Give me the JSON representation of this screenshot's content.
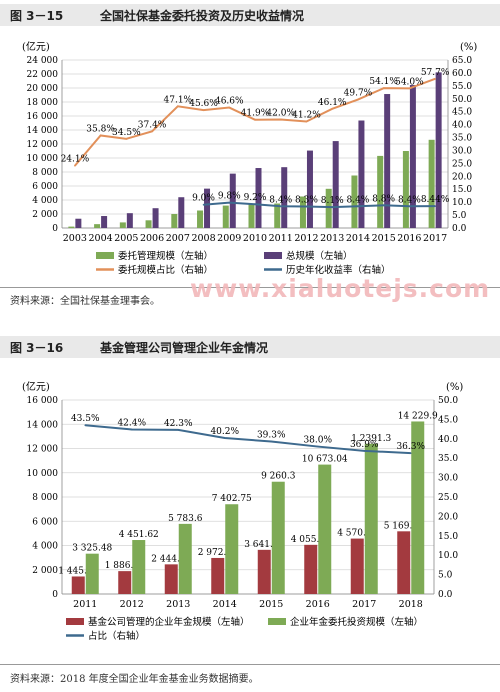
{
  "figures": [
    {
      "number": "图 3－15",
      "title": "全国社保基金委托投资及历史收益情况",
      "source": "资料来源：全国社保基金理事会。"
    },
    {
      "number": "图 3－16",
      "title": "基金管理公司管理企业年金情况",
      "source": "资料来源：2018 年度全国企业年金基金业务数据摘要。"
    }
  ],
  "watermark": "www.xialuotejs.com",
  "chart_data": [
    {
      "type": "bar",
      "title": "全国社保基金委托投资及历史收益情况",
      "left_axis_unit": "(亿元)",
      "right_axis_unit": "(%)",
      "ylim": [
        0,
        24000
      ],
      "ylim_right": [
        0,
        65
      ],
      "y_ticks": [
        "0",
        "2 000",
        "4 000",
        "6 000",
        "8 000",
        "10 000",
        "12 000",
        "14 000",
        "16 000",
        "18 000",
        "20 000",
        "22 000",
        "24 000"
      ],
      "y2_ticks": [
        "0.0",
        "5.0",
        "10.0",
        "15.0",
        "20.0",
        "25.0",
        "30.0",
        "35.0",
        "40.0",
        "45.0",
        "50.0",
        "55.0",
        "60.0",
        "65.0"
      ],
      "categories": [
        "2003",
        "2004",
        "2005",
        "2006",
        "2007",
        "2008",
        "2009",
        "2010",
        "2011",
        "2012",
        "2013",
        "2014",
        "2015",
        "2016",
        "2017"
      ],
      "series": [
        {
          "name": "委托管理规模（左轴）",
          "kind": "bar",
          "axis": "left",
          "color": "#7eaa55",
          "values": [
            200,
            550,
            800,
            1100,
            2000,
            2500,
            3200,
            3400,
            3500,
            4500,
            5600,
            7500,
            10300,
            11000,
            12600
          ]
        },
        {
          "name": "总规模（左轴）",
          "kind": "bar",
          "axis": "left",
          "color": "#5a3f78",
          "values": [
            1325,
            1711,
            2118,
            2828,
            4397,
            5624,
            7766,
            8567,
            8688,
            11060,
            12416,
            15356,
            19138,
            20423,
            22231
          ]
        },
        {
          "name": "委托规模占比（右轴）",
          "kind": "line",
          "axis": "right",
          "color": "#e2905a",
          "values": [
            24.1,
            35.8,
            34.5,
            37.4,
            47.1,
            45.6,
            46.6,
            41.9,
            42.0,
            41.2,
            46.1,
            49.7,
            54.1,
            54.0,
            57.7
          ],
          "labels": [
            "24.1%",
            "35.8%",
            "34.5%",
            "37.4%",
            "47.1%",
            "45.6%",
            "46.6%",
            "41.9%",
            "42.0%",
            "41.2%",
            "46.1%",
            "49.7%",
            "54.1%",
            "54.0%",
            "57.7%"
          ]
        },
        {
          "name": "历史年化收益率（右轴）",
          "kind": "line",
          "axis": "right",
          "color": "#3e6a8e",
          "values": [
            null,
            null,
            null,
            null,
            null,
            9.0,
            9.8,
            9.2,
            8.4,
            8.3,
            8.1,
            8.4,
            8.8,
            8.4,
            8.44
          ],
          "labels": [
            "",
            "",
            "",
            "",
            "",
            "9.0%",
            "9.8%",
            "9.2%",
            "8.4%",
            "8.3%",
            "8.1%",
            "8.4%",
            "8.8%",
            "8.4%",
            "8.44%"
          ]
        }
      ],
      "legend_placement": "bottom",
      "grid": true
    },
    {
      "type": "bar",
      "title": "基金管理公司管理企业年金情况",
      "left_axis_unit": "(亿元)",
      "right_axis_unit": "(%)",
      "ylim": [
        0,
        16000
      ],
      "ylim_right": [
        0,
        50
      ],
      "y_ticks": [
        "0",
        "2 000",
        "4 000",
        "6 000",
        "8 000",
        "10 000",
        "12 000",
        "14 000",
        "16 000"
      ],
      "y2_ticks": [
        "0.0",
        "5.0",
        "10.0",
        "15.0",
        "20.0",
        "25.0",
        "30.0",
        "35.0",
        "40.0",
        "45.0",
        "50.0"
      ],
      "categories": [
        "2011",
        "2012",
        "2013",
        "2014",
        "2015",
        "2016",
        "2017",
        "2018"
      ],
      "series": [
        {
          "name": "基金公司管理的企业年金规模（左轴）",
          "kind": "bar",
          "axis": "left",
          "color": "#a33a3f",
          "values": [
            1445.26,
            1886.33,
            2444.97,
            2972.75,
            3641.98,
            4055.11,
            4570.91,
            5169.7
          ],
          "labels": [
            "1 445.26",
            "1 886.33",
            "2 444.97",
            "2 972.75",
            "3 641.98",
            "4 055.11",
            "4 570.91",
            "5 169.70"
          ]
        },
        {
          "name": "企业年金委托投资规模（左轴）",
          "kind": "bar",
          "axis": "left",
          "color": "#7eaa55",
          "values": [
            3325.48,
            4451.62,
            5783.6,
            7402.75,
            9260.3,
            10673.04,
            12391.3,
            14229.9
          ],
          "labels": [
            "3 325.48",
            "4 451.62",
            "5 783.6",
            "7 402.75",
            "9 260.3",
            "10 673.04",
            "1 2391.3",
            "14 229.9"
          ]
        },
        {
          "name": "占比（右轴）",
          "kind": "line",
          "axis": "right",
          "color": "#3e6a8e",
          "values": [
            43.5,
            42.4,
            42.3,
            40.2,
            39.3,
            38.0,
            36.9,
            36.3
          ],
          "labels": [
            "43.5%",
            "42.4%",
            "42.3%",
            "40.2%",
            "39.3%",
            "38.0%",
            "36.9%",
            "36.3%"
          ]
        }
      ],
      "legend_placement": "bottom",
      "grid": true
    }
  ]
}
